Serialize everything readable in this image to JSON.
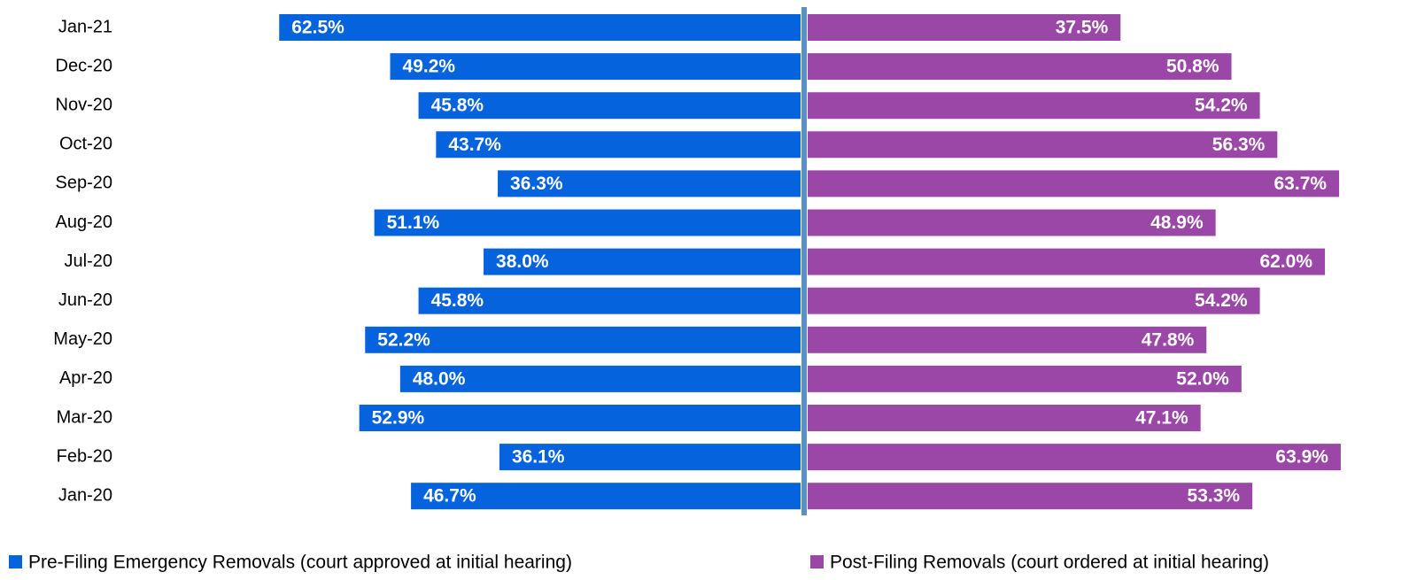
{
  "chart_data": {
    "type": "bar",
    "orientation": "diverging",
    "categories": [
      "Jan-21",
      "Dec-20",
      "Nov-20",
      "Oct-20",
      "Sep-20",
      "Aug-20",
      "Jul-20",
      "Jun-20",
      "May-20",
      "Apr-20",
      "Mar-20",
      "Feb-20",
      "Jan-20"
    ],
    "series": [
      {
        "name": "Pre-Filing Emergency Removals (court approved at initial hearing)",
        "color": "#0563dd",
        "values": [
          62.5,
          49.2,
          45.8,
          43.7,
          36.3,
          51.1,
          38.0,
          45.8,
          52.2,
          48.0,
          52.9,
          36.1,
          46.7
        ],
        "value_labels": [
          "62.5%",
          "49.2%",
          "45.8%",
          "43.7%",
          "36.3%",
          "51.1%",
          "38.0%",
          "45.8%",
          "52.2%",
          "48.0%",
          "52.9%",
          "36.1%",
          "46.7%"
        ]
      },
      {
        "name": "Post-Filing Removals (court ordered at initial hearing)",
        "color": "#9b47a8",
        "values": [
          37.5,
          50.8,
          54.2,
          56.3,
          63.7,
          48.9,
          62.0,
          54.2,
          47.8,
          52.0,
          47.1,
          63.9,
          53.3
        ],
        "value_labels": [
          "37.5%",
          "50.8%",
          "54.2%",
          "56.3%",
          "63.7%",
          "48.9%",
          "62.0%",
          "54.2%",
          "47.8%",
          "52.0%",
          "47.1%",
          "63.9%",
          "53.3%"
        ]
      }
    ],
    "legend": "bottom"
  }
}
